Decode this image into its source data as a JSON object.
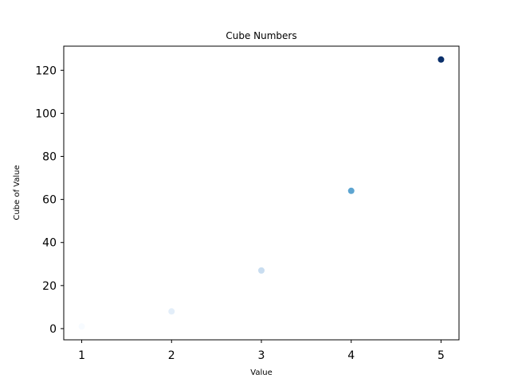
{
  "chart_data": {
    "type": "scatter",
    "title": "Cube Numbers",
    "xlabel": "Value",
    "ylabel": "Cube of Value",
    "x": [
      1,
      2,
      3,
      4,
      5
    ],
    "y": [
      1,
      8,
      27,
      64,
      125
    ],
    "xlim": [
      0.8,
      5.2
    ],
    "ylim": [
      -5.2,
      131.2
    ],
    "xticks": [
      1,
      2,
      3,
      4,
      5
    ],
    "yticks": [
      0,
      20,
      40,
      60,
      80,
      100,
      120
    ],
    "grid": false,
    "colormap": "Blues",
    "point_colors": [
      "#f7fbff",
      "#e3eef9",
      "#c9ddf0",
      "#5da5d1",
      "#0b306b"
    ]
  }
}
